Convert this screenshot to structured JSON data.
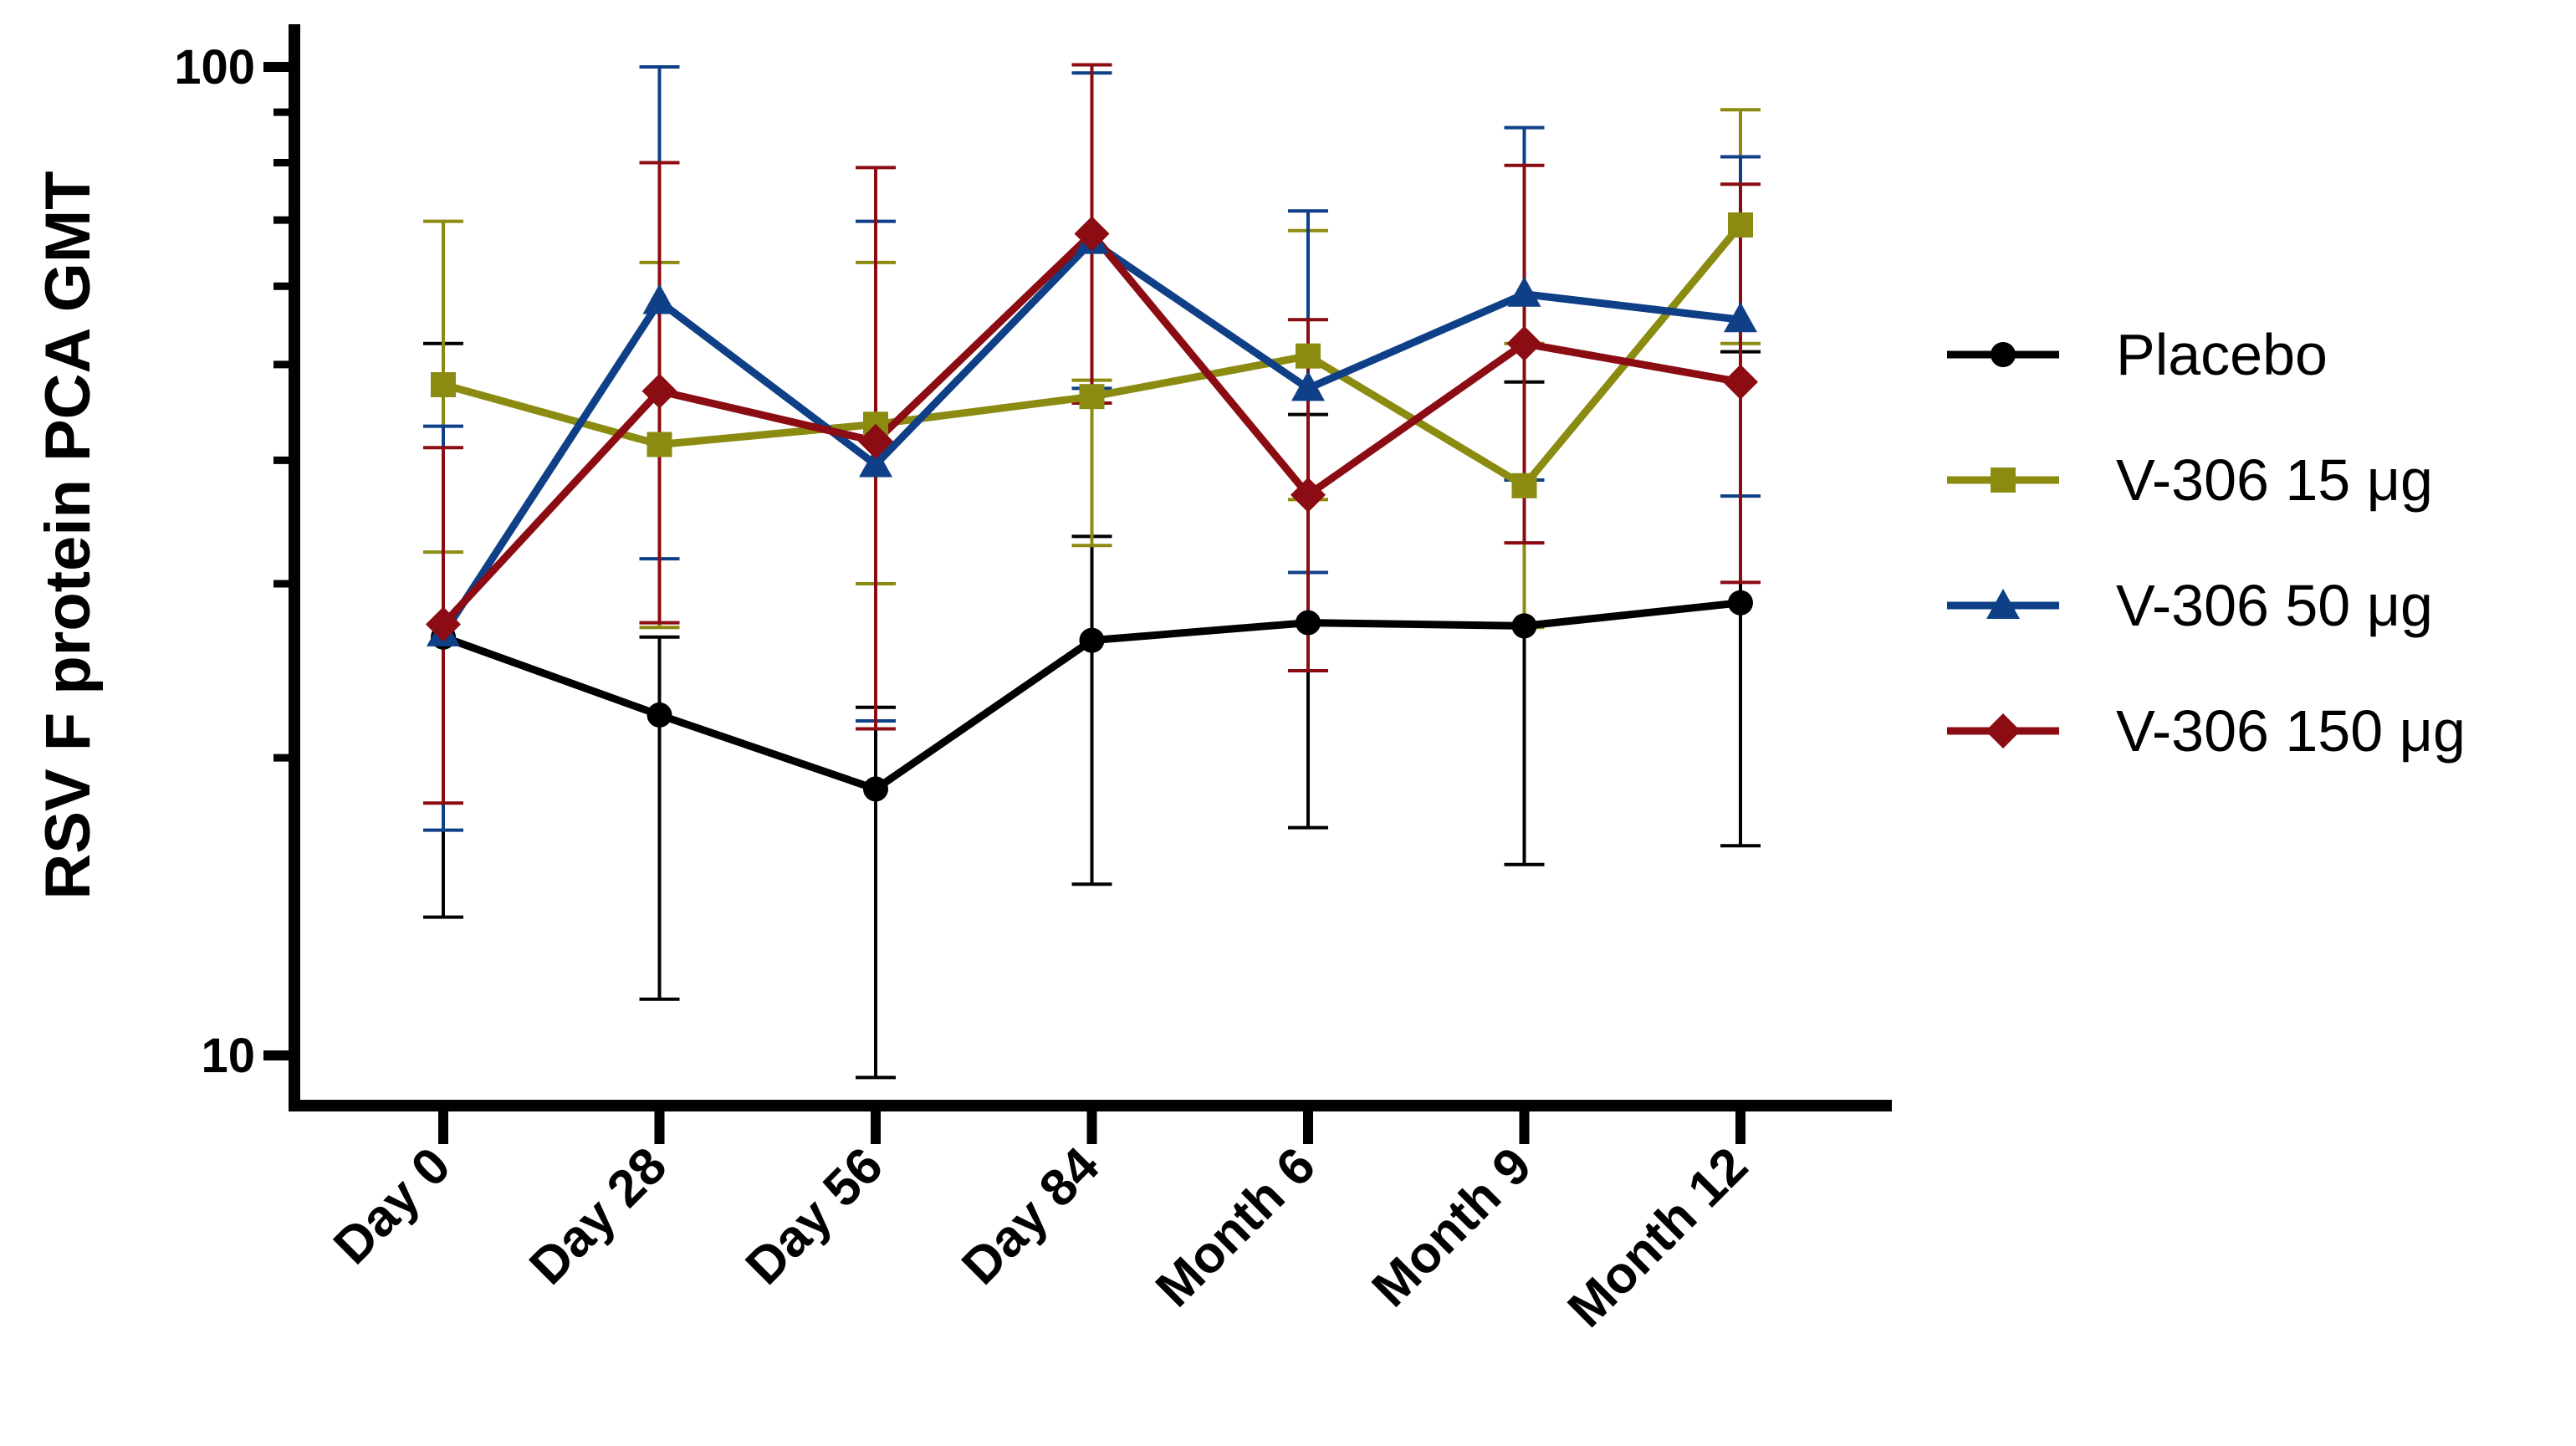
{
  "chart_data": {
    "type": "line",
    "title": "",
    "xlabel": "",
    "ylabel": "RSV F protein PCA GMT",
    "yscale": "log",
    "ylim": [
      9.2,
      100
    ],
    "ytick_values": [
      10,
      100
    ],
    "ytick_labels": [
      "10",
      "100"
    ],
    "categories": [
      "Day 0",
      "Day 28",
      "Day 56",
      "Day 84",
      "Month 6",
      "Month 9",
      "Month 12"
    ],
    "legend_position": "right",
    "series": [
      {
        "name": "Placebo",
        "color": "#000000",
        "marker": "circle",
        "values": [
          26.5,
          22.1,
          18.6,
          26.3,
          27.4,
          27.2,
          28.7
        ],
        "error_high": [
          52.5,
          26.5,
          22.5,
          33.5,
          44.5,
          48.0,
          51.5
        ],
        "error_low": [
          13.8,
          11.4,
          9.5,
          14.9,
          17.0,
          15.6,
          16.3
        ]
      },
      {
        "name": "V-306 15 μg",
        "color": "#8b8b12",
        "marker": "square",
        "values": [
          47.7,
          41.5,
          43.5,
          46.4,
          51.0,
          37.7,
          69.2
        ],
        "error_high": [
          69.8,
          63.4,
          63.4,
          48.2,
          68.3,
          52.5,
          90.5
        ],
        "error_low": [
          32.3,
          27.1,
          30.0,
          32.8,
          36.5,
          27.1,
          52.5
        ]
      },
      {
        "name": "V-306 50 μg",
        "color": "#0e3f87",
        "marker": "triangle",
        "values": [
          26.7,
          57.9,
          39.6,
          66.6,
          47.3,
          58.9,
          55.5
        ],
        "error_high": [
          43.3,
          100.0,
          69.8,
          98.6,
          71.5,
          86.8,
          81.1
        ],
        "error_low": [
          16.9,
          31.8,
          21.8,
          47.3,
          30.8,
          38.2,
          36.8
        ]
      },
      {
        "name": "V-306 150 μg",
        "color": "#8b0c12",
        "marker": "diamond",
        "values": [
          27.3,
          47.0,
          41.8,
          67.8,
          36.9,
          52.5,
          48.0
        ],
        "error_high": [
          41.2,
          80.0,
          79.1,
          100.5,
          55.5,
          79.5,
          76.1
        ],
        "error_low": [
          18.0,
          27.4,
          21.4,
          45.7,
          24.5,
          33.0,
          30.1
        ]
      }
    ]
  }
}
